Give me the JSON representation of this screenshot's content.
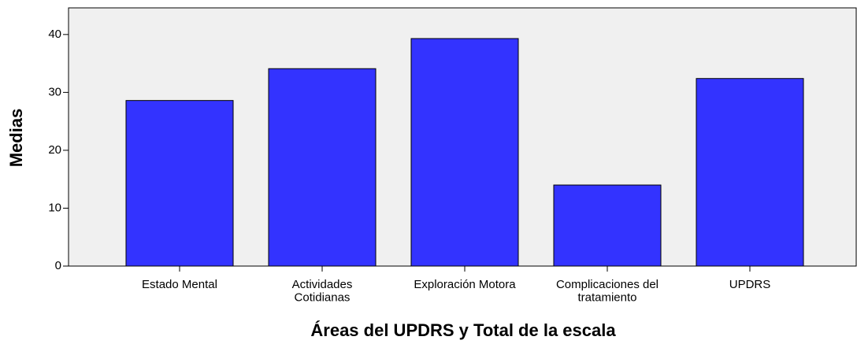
{
  "chart_data": {
    "type": "bar",
    "x_label": "Áreas del UPDRS y Total de la escala",
    "y_label": "Medias",
    "categories": [
      "Estado Mental",
      "Actividades\nCotidianas",
      "Exploración Motora",
      "Complicaciones del\ntratamiento",
      "UPDRS"
    ],
    "values": [
      28.6,
      34.1,
      39.3,
      14.0,
      32.4
    ],
    "color": "#3333ff",
    "ylim": [
      0,
      44.6
    ],
    "yticks": [
      0,
      10,
      20,
      30,
      40
    ],
    "grid": false
  }
}
